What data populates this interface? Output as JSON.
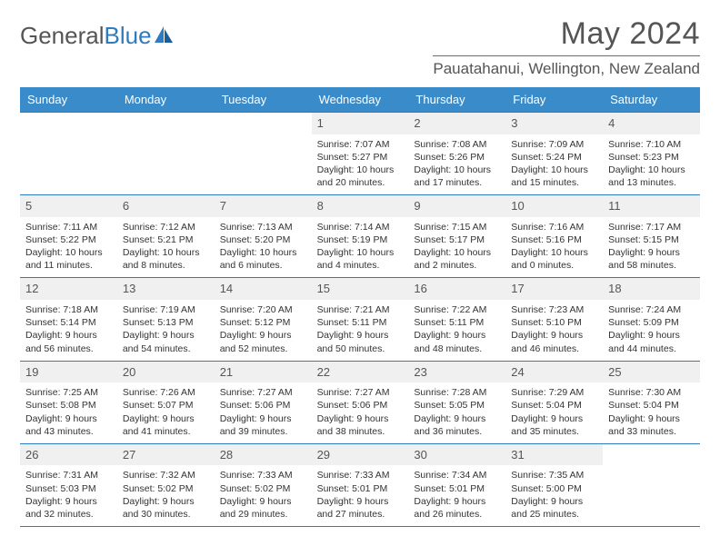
{
  "logo": {
    "text1": "General",
    "text2": "Blue"
  },
  "title": {
    "month": "May 2024",
    "location": "Pauatahanui, Wellington, New Zealand"
  },
  "colors": {
    "header_bg": "#3a8bc9",
    "border": "#2f7bbf",
    "daynum_bg": "#f0f0f0",
    "text": "#333333",
    "muted": "#555555"
  },
  "day_names": [
    "Sunday",
    "Monday",
    "Tuesday",
    "Wednesday",
    "Thursday",
    "Friday",
    "Saturday"
  ],
  "weeks": [
    [
      null,
      null,
      null,
      {
        "n": "1",
        "sr": "7:07 AM",
        "ss": "5:27 PM",
        "dl": "10 hours and 20 minutes."
      },
      {
        "n": "2",
        "sr": "7:08 AM",
        "ss": "5:26 PM",
        "dl": "10 hours and 17 minutes."
      },
      {
        "n": "3",
        "sr": "7:09 AM",
        "ss": "5:24 PM",
        "dl": "10 hours and 15 minutes."
      },
      {
        "n": "4",
        "sr": "7:10 AM",
        "ss": "5:23 PM",
        "dl": "10 hours and 13 minutes."
      }
    ],
    [
      {
        "n": "5",
        "sr": "7:11 AM",
        "ss": "5:22 PM",
        "dl": "10 hours and 11 minutes."
      },
      {
        "n": "6",
        "sr": "7:12 AM",
        "ss": "5:21 PM",
        "dl": "10 hours and 8 minutes."
      },
      {
        "n": "7",
        "sr": "7:13 AM",
        "ss": "5:20 PM",
        "dl": "10 hours and 6 minutes."
      },
      {
        "n": "8",
        "sr": "7:14 AM",
        "ss": "5:19 PM",
        "dl": "10 hours and 4 minutes."
      },
      {
        "n": "9",
        "sr": "7:15 AM",
        "ss": "5:17 PM",
        "dl": "10 hours and 2 minutes."
      },
      {
        "n": "10",
        "sr": "7:16 AM",
        "ss": "5:16 PM",
        "dl": "10 hours and 0 minutes."
      },
      {
        "n": "11",
        "sr": "7:17 AM",
        "ss": "5:15 PM",
        "dl": "9 hours and 58 minutes."
      }
    ],
    [
      {
        "n": "12",
        "sr": "7:18 AM",
        "ss": "5:14 PM",
        "dl": "9 hours and 56 minutes."
      },
      {
        "n": "13",
        "sr": "7:19 AM",
        "ss": "5:13 PM",
        "dl": "9 hours and 54 minutes."
      },
      {
        "n": "14",
        "sr": "7:20 AM",
        "ss": "5:12 PM",
        "dl": "9 hours and 52 minutes."
      },
      {
        "n": "15",
        "sr": "7:21 AM",
        "ss": "5:11 PM",
        "dl": "9 hours and 50 minutes."
      },
      {
        "n": "16",
        "sr": "7:22 AM",
        "ss": "5:11 PM",
        "dl": "9 hours and 48 minutes."
      },
      {
        "n": "17",
        "sr": "7:23 AM",
        "ss": "5:10 PM",
        "dl": "9 hours and 46 minutes."
      },
      {
        "n": "18",
        "sr": "7:24 AM",
        "ss": "5:09 PM",
        "dl": "9 hours and 44 minutes."
      }
    ],
    [
      {
        "n": "19",
        "sr": "7:25 AM",
        "ss": "5:08 PM",
        "dl": "9 hours and 43 minutes."
      },
      {
        "n": "20",
        "sr": "7:26 AM",
        "ss": "5:07 PM",
        "dl": "9 hours and 41 minutes."
      },
      {
        "n": "21",
        "sr": "7:27 AM",
        "ss": "5:06 PM",
        "dl": "9 hours and 39 minutes."
      },
      {
        "n": "22",
        "sr": "7:27 AM",
        "ss": "5:06 PM",
        "dl": "9 hours and 38 minutes."
      },
      {
        "n": "23",
        "sr": "7:28 AM",
        "ss": "5:05 PM",
        "dl": "9 hours and 36 minutes."
      },
      {
        "n": "24",
        "sr": "7:29 AM",
        "ss": "5:04 PM",
        "dl": "9 hours and 35 minutes."
      },
      {
        "n": "25",
        "sr": "7:30 AM",
        "ss": "5:04 PM",
        "dl": "9 hours and 33 minutes."
      }
    ],
    [
      {
        "n": "26",
        "sr": "7:31 AM",
        "ss": "5:03 PM",
        "dl": "9 hours and 32 minutes."
      },
      {
        "n": "27",
        "sr": "7:32 AM",
        "ss": "5:02 PM",
        "dl": "9 hours and 30 minutes."
      },
      {
        "n": "28",
        "sr": "7:33 AM",
        "ss": "5:02 PM",
        "dl": "9 hours and 29 minutes."
      },
      {
        "n": "29",
        "sr": "7:33 AM",
        "ss": "5:01 PM",
        "dl": "9 hours and 27 minutes."
      },
      {
        "n": "30",
        "sr": "7:34 AM",
        "ss": "5:01 PM",
        "dl": "9 hours and 26 minutes."
      },
      {
        "n": "31",
        "sr": "7:35 AM",
        "ss": "5:00 PM",
        "dl": "9 hours and 25 minutes."
      },
      null
    ]
  ],
  "labels": {
    "sunrise": "Sunrise:",
    "sunset": "Sunset:",
    "daylight": "Daylight:"
  }
}
